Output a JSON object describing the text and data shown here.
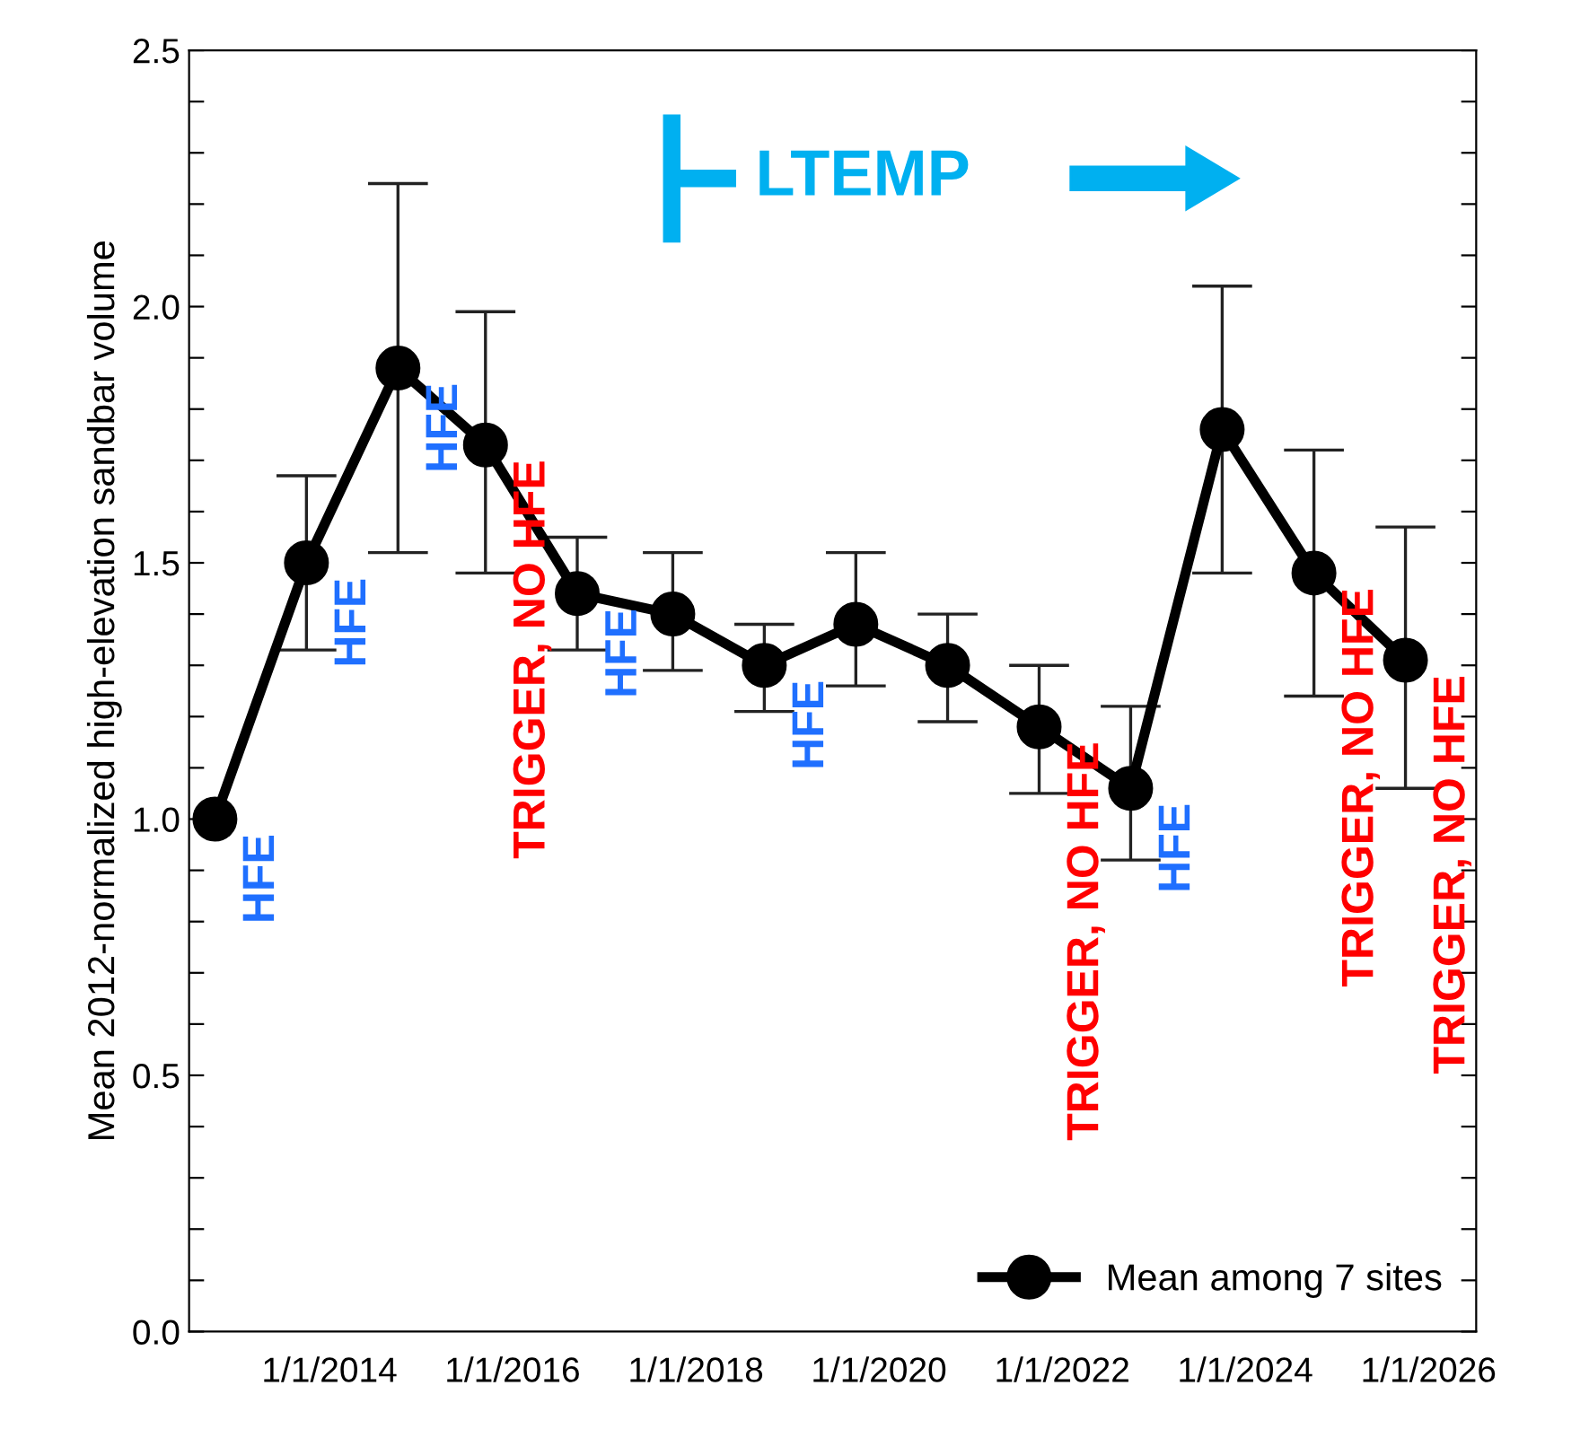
{
  "chart_data": {
    "type": "line",
    "ylabel": "Mean 2012-normalized high-elevation sandbar volume",
    "x": [
      "2012-10-01",
      "2013-10-01",
      "2014-10-01",
      "2015-09-15",
      "2016-09-15",
      "2017-10-01",
      "2018-10-01",
      "2019-10-01",
      "2020-10-01",
      "2021-10-01",
      "2022-10-01",
      "2023-10-01",
      "2024-10-01",
      "2025-10-01"
    ],
    "series": [
      {
        "name": "Mean among 7 sites",
        "color": "#000000",
        "values": [
          1.0,
          1.5,
          1.88,
          1.73,
          1.44,
          1.4,
          1.3,
          1.38,
          1.3,
          1.18,
          1.06,
          1.76,
          1.48,
          1.31
        ],
        "errors": [
          null,
          [
            1.33,
            1.67
          ],
          [
            1.52,
            2.24
          ],
          [
            1.48,
            1.99
          ],
          [
            1.33,
            1.55
          ],
          [
            1.29,
            1.52
          ],
          [
            1.21,
            1.38
          ],
          [
            1.26,
            1.52
          ],
          [
            1.19,
            1.4
          ],
          [
            1.05,
            1.3
          ],
          [
            0.92,
            1.22
          ],
          [
            1.48,
            2.04
          ],
          [
            1.24,
            1.72
          ],
          [
            1.06,
            1.57
          ]
        ]
      }
    ],
    "marker": "circle",
    "line_style": "solid",
    "legend": "bottom right",
    "grid": false,
    "xlim": [
      "2012-06-20",
      "2026-07-10"
    ],
    "xticks": [
      {
        "value": "2014-01-01",
        "label": "1/1/2014"
      },
      {
        "value": "2016-01-01",
        "label": "1/1/2016"
      },
      {
        "value": "2018-01-01",
        "label": "1/1/2018"
      },
      {
        "value": "2020-01-01",
        "label": "1/1/2020"
      },
      {
        "value": "2022-01-01",
        "label": "1/1/2022"
      },
      {
        "value": "2024-01-01",
        "label": "1/1/2024"
      },
      {
        "value": "2026-01-01",
        "label": "1/1/2026"
      }
    ],
    "ylim": [
      0,
      2.5
    ],
    "yticks": [
      {
        "value": 0,
        "label": "0.0"
      },
      {
        "value": 0.1,
        "label": null
      },
      {
        "value": 0.2,
        "label": null
      },
      {
        "value": 0.3,
        "label": null
      },
      {
        "value": 0.4,
        "label": null
      },
      {
        "value": 0.5,
        "label": "0.5"
      },
      {
        "value": 0.6,
        "label": null
      },
      {
        "value": 0.7,
        "label": null
      },
      {
        "value": 0.8,
        "label": null
      },
      {
        "value": 0.9,
        "label": null
      },
      {
        "value": 1.0,
        "label": "1.0"
      },
      {
        "value": 1.1,
        "label": null
      },
      {
        "value": 1.2,
        "label": null
      },
      {
        "value": 1.3,
        "label": null
      },
      {
        "value": 1.4,
        "label": null
      },
      {
        "value": 1.5,
        "label": "1.5"
      },
      {
        "value": 1.6,
        "label": null
      },
      {
        "value": 1.7,
        "label": null
      },
      {
        "value": 1.8,
        "label": null
      },
      {
        "value": 1.9,
        "label": null
      },
      {
        "value": 2.0,
        "label": "2.0"
      },
      {
        "value": 2.1,
        "label": null
      },
      {
        "value": 2.2,
        "label": null
      },
      {
        "value": 2.3,
        "label": null
      },
      {
        "value": 2.4,
        "label": null
      },
      {
        "value": 2.5,
        "label": "2.5"
      }
    ],
    "annotations": [
      {
        "text": "HFE",
        "x": "2012-10-01",
        "y": 1.0
      },
      {
        "text": "HFE",
        "x": "2013-10-01",
        "y": 1.5
      },
      {
        "text": "HFE",
        "x": "2014-10-01",
        "y": 1.88
      },
      {
        "text": "TRIGGER, NO HFE",
        "x": "2015-09-15",
        "y": 1.73
      },
      {
        "text": "HFE",
        "x": "2016-09-15",
        "y": 1.44
      },
      {
        "text": "HFE",
        "x": "2018-10-01",
        "y": 1.3
      },
      {
        "text": "TRIGGER, NO HFE",
        "x": "2021-10-01",
        "y": 1.18
      },
      {
        "text": "HFE",
        "x": "2022-10-01",
        "y": 1.06
      },
      {
        "text": "TRIGGER, NO HFE",
        "x": "2024-10-01",
        "y": 1.48
      },
      {
        "text": "TRIGGER, NO HFE",
        "x": "2025-10-01",
        "y": 1.31
      },
      "LTEMP"
    ]
  }
}
